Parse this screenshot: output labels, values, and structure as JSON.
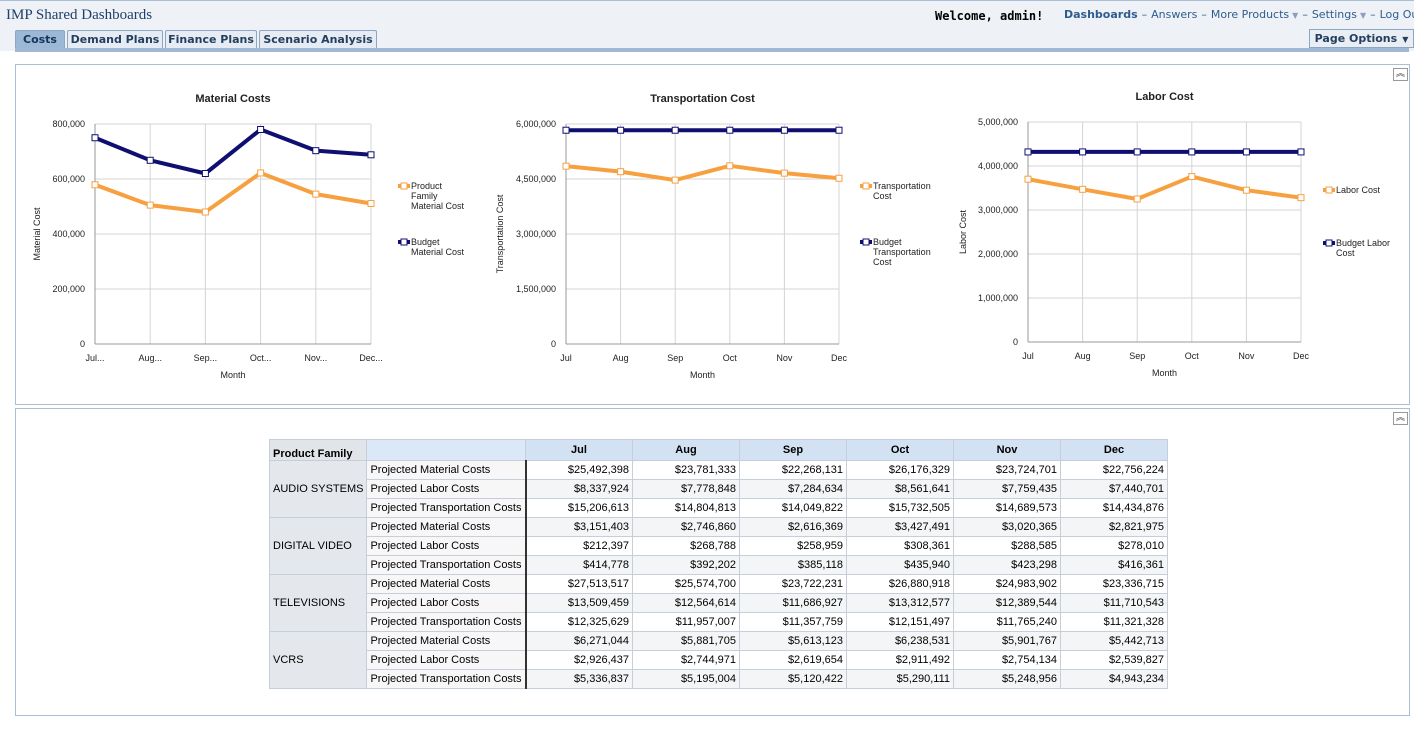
{
  "header": {
    "app_title": "IMP Shared Dashboards",
    "welcome": "Welcome, admin!",
    "nav": {
      "dashboards": "Dashboards",
      "answers": "Answers",
      "more_products": "More Products",
      "settings": "Settings",
      "logout": "Log Out",
      "separator": "–"
    },
    "page_options": "Page Options"
  },
  "tabs": [
    {
      "label": "Costs",
      "active": true
    },
    {
      "label": "Demand Plans",
      "active": false
    },
    {
      "label": "Finance Plans",
      "active": false
    },
    {
      "label": "Scenario Analysis",
      "active": false
    }
  ],
  "colors": {
    "orange": "#f7a040",
    "navy": "#0f0f72",
    "accent": "#2f5c8f"
  },
  "chart_data": [
    {
      "type": "line",
      "title": "Material Costs",
      "xlabel": "Month",
      "ylabel": "Material Cost",
      "categories": [
        "Jul...",
        "Aug...",
        "Sep...",
        "Oct...",
        "Nov...",
        "Dec..."
      ],
      "ylim": [
        0,
        800000
      ],
      "yticks": [
        "800,000",
        "600,000",
        "400,000",
        "200,000",
        "0"
      ],
      "grid": true,
      "legend_position": "right",
      "series": [
        {
          "name": "Product Family Material Cost",
          "legend_lines": [
            "Product",
            "Family",
            "Material Cost"
          ],
          "color": "#f7a040",
          "values": [
            579000,
            505000,
            480000,
            622000,
            545000,
            511000
          ]
        },
        {
          "name": "Budget Material Cost",
          "legend_lines": [
            "Budget",
            "Material Cost"
          ],
          "color": "#0f0f72",
          "values": [
            750000,
            668000,
            620000,
            780000,
            703000,
            688000
          ]
        }
      ]
    },
    {
      "type": "line",
      "title": "Transportation Cost",
      "xlabel": "Month",
      "ylabel": "Transportation Cost",
      "categories": [
        "Jul",
        "Aug",
        "Sep",
        "Oct",
        "Nov",
        "Dec"
      ],
      "ylim": [
        0,
        6000000
      ],
      "yticks": [
        "6,000,000",
        "4,500,000",
        "3,000,000",
        "1,500,000",
        "0"
      ],
      "grid": true,
      "legend_position": "right",
      "series": [
        {
          "name": "Transportation Cost",
          "legend_lines": [
            "Transportation",
            "Cost"
          ],
          "color": "#f7a040",
          "values": [
            4850000,
            4700000,
            4470000,
            4860000,
            4660000,
            4520000
          ]
        },
        {
          "name": "Budget Transportation Cost",
          "legend_lines": [
            "Budget",
            "Transportation",
            "Cost"
          ],
          "color": "#0f0f72",
          "values": [
            5830000,
            5830000,
            5830000,
            5830000,
            5830000,
            5830000
          ]
        }
      ]
    },
    {
      "type": "line",
      "title": "Labor Cost",
      "xlabel": "Month",
      "ylabel": "Labor Cost",
      "categories": [
        "Jul",
        "Aug",
        "Sep",
        "Oct",
        "Nov",
        "Dec"
      ],
      "ylim": [
        0,
        5000000
      ],
      "yticks": [
        "5,000,000",
        "4,000,000",
        "3,000,000",
        "2,000,000",
        "1,000,000",
        "0"
      ],
      "grid": true,
      "legend_position": "right",
      "series": [
        {
          "name": "Labor Cost",
          "legend_lines": [
            "Labor Cost"
          ],
          "color": "#f7a040",
          "values": [
            3700000,
            3470000,
            3250000,
            3760000,
            3450000,
            3280000
          ]
        },
        {
          "name": "Budget Labor Cost",
          "legend_lines": [
            "Budget Labor",
            "Cost"
          ],
          "color": "#0f0f72",
          "values": [
            4320000,
            4320000,
            4320000,
            4320000,
            4320000,
            4320000
          ]
        }
      ]
    }
  ],
  "table": {
    "corner_header": "Product Family",
    "months": [
      "Jul",
      "Aug",
      "Sep",
      "Oct",
      "Nov",
      "Dec"
    ],
    "groups": [
      {
        "family": "AUDIO SYSTEMS",
        "rows": [
          {
            "metric": "Projected Material Costs",
            "values": [
              "$25,492,398",
              "$23,781,333",
              "$22,268,131",
              "$26,176,329",
              "$23,724,701",
              "$22,756,224"
            ]
          },
          {
            "metric": "Projected Labor Costs",
            "values": [
              "$8,337,924",
              "$7,778,848",
              "$7,284,634",
              "$8,561,641",
              "$7,759,435",
              "$7,440,701"
            ]
          },
          {
            "metric": "Projected Transportation Costs",
            "values": [
              "$15,206,613",
              "$14,804,813",
              "$14,049,822",
              "$15,732,505",
              "$14,689,573",
              "$14,434,876"
            ]
          }
        ]
      },
      {
        "family": "DIGITAL VIDEO",
        "rows": [
          {
            "metric": "Projected Material Costs",
            "values": [
              "$3,151,403",
              "$2,746,860",
              "$2,616,369",
              "$3,427,491",
              "$3,020,365",
              "$2,821,975"
            ]
          },
          {
            "metric": "Projected Labor Costs",
            "values": [
              "$212,397",
              "$268,788",
              "$258,959",
              "$308,361",
              "$288,585",
              "$278,010"
            ]
          },
          {
            "metric": "Projected Transportation Costs",
            "values": [
              "$414,778",
              "$392,202",
              "$385,118",
              "$435,940",
              "$423,298",
              "$416,361"
            ]
          }
        ]
      },
      {
        "family": "TELEVISIONS",
        "rows": [
          {
            "metric": "Projected Material Costs",
            "values": [
              "$27,513,517",
              "$25,574,700",
              "$23,722,231",
              "$26,880,918",
              "$24,983,902",
              "$23,336,715"
            ]
          },
          {
            "metric": "Projected Labor Costs",
            "values": [
              "$13,509,459",
              "$12,564,614",
              "$11,686,927",
              "$13,312,577",
              "$12,389,544",
              "$11,710,543"
            ]
          },
          {
            "metric": "Projected Transportation Costs",
            "values": [
              "$12,325,629",
              "$11,957,007",
              "$11,357,759",
              "$12,151,497",
              "$11,765,240",
              "$11,321,328"
            ]
          }
        ]
      },
      {
        "family": "VCRS",
        "rows": [
          {
            "metric": "Projected Material Costs",
            "values": [
              "$6,271,044",
              "$5,881,705",
              "$5,613,123",
              "$6,238,531",
              "$5,901,767",
              "$5,442,713"
            ]
          },
          {
            "metric": "Projected Labor Costs",
            "values": [
              "$2,926,437",
              "$2,744,971",
              "$2,619,654",
              "$2,911,492",
              "$2,754,134",
              "$2,539,827"
            ]
          },
          {
            "metric": "Projected Transportation Costs",
            "values": [
              "$5,336,837",
              "$5,195,004",
              "$5,120,422",
              "$5,290,111",
              "$5,248,956",
              "$4,943,234"
            ]
          }
        ]
      }
    ]
  }
}
